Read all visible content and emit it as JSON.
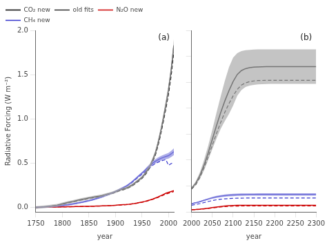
{
  "chart_data": [
    {
      "type": "line",
      "xlabel": "year",
      "ylabel": "Radiative Forcing (W m⁻²)",
      "annotations": [
        "(a)"
      ],
      "legend": "upper left",
      "grid": false,
      "x": [
        1750,
        1755,
        1760,
        1765,
        1770,
        1775,
        1780,
        1785,
        1790,
        1795,
        1800,
        1805,
        1810,
        1815,
        1820,
        1825,
        1830,
        1835,
        1840,
        1845,
        1850,
        1855,
        1860,
        1865,
        1870,
        1875,
        1880,
        1885,
        1890,
        1895,
        1900,
        1905,
        1910,
        1915,
        1920,
        1925,
        1930,
        1935,
        1940,
        1945,
        1950,
        1955,
        1960,
        1965,
        1970,
        1975,
        1980,
        1985,
        1990,
        1995,
        2000,
        2005,
        2010
      ],
      "xlim": [
        1750,
        2010
      ],
      "xticks": [
        1750,
        1800,
        1850,
        1900,
        1950,
        2000
      ],
      "ylim": [
        -0.05,
        2.0
      ],
      "yticks": [
        {
          "value": 0.0,
          "label": "0.0"
        },
        0.5,
        {
          "value": 1.0,
          "label": "1.0"
        },
        1.5,
        {
          "value": 2.0,
          "label": "2.0"
        }
      ],
      "series": [
        {
          "type": "band",
          "color": "#aaaaaa",
          "lower": [
            -0.015,
            -0.013,
            -0.012,
            -0.008,
            -0.005,
            -0.002,
            0.002,
            0.006,
            0.01,
            0.017,
            0.025,
            0.033,
            0.04,
            0.047,
            0.053,
            0.06,
            0.067,
            0.073,
            0.079,
            0.085,
            0.092,
            0.097,
            0.103,
            0.108,
            0.113,
            0.119,
            0.127,
            0.135,
            0.143,
            0.152,
            0.163,
            0.175,
            0.187,
            0.195,
            0.203,
            0.217,
            0.233,
            0.253,
            0.277,
            0.3,
            0.322,
            0.355,
            0.398,
            0.446,
            0.508,
            0.58,
            0.685,
            0.81,
            0.955,
            1.11,
            1.275,
            1.49,
            1.76
          ],
          "upper": [
            0.015,
            0.017,
            0.02,
            0.022,
            0.025,
            0.028,
            0.032,
            0.036,
            0.04,
            0.047,
            0.055,
            0.063,
            0.07,
            0.077,
            0.083,
            0.09,
            0.097,
            0.103,
            0.109,
            0.115,
            0.122,
            0.127,
            0.133,
            0.138,
            0.143,
            0.149,
            0.157,
            0.165,
            0.173,
            0.182,
            0.193,
            0.205,
            0.217,
            0.225,
            0.233,
            0.247,
            0.263,
            0.283,
            0.307,
            0.33,
            0.358,
            0.395,
            0.442,
            0.494,
            0.562,
            0.64,
            0.755,
            0.89,
            1.045,
            1.21,
            1.385,
            1.61,
            1.9
          ]
        },
        {
          "type": "band",
          "color": "#8888dd",
          "lower": [
            -0.01,
            -0.008,
            -0.007,
            -0.005,
            -0.003,
            -0.001,
            0.001,
            0.003,
            0.006,
            0.009,
            0.012,
            0.016,
            0.02,
            0.025,
            0.03,
            0.035,
            0.041,
            0.047,
            0.053,
            0.06,
            0.067,
            0.075,
            0.083,
            0.092,
            0.101,
            0.111,
            0.122,
            0.133,
            0.145,
            0.157,
            0.17,
            0.185,
            0.2,
            0.215,
            0.23,
            0.25,
            0.272,
            0.298,
            0.325,
            0.352,
            0.376,
            0.4,
            0.428,
            0.452,
            0.478,
            0.496,
            0.513,
            0.526,
            0.537,
            0.545,
            0.553,
            0.57,
            0.592
          ],
          "upper": [
            0.01,
            0.012,
            0.013,
            0.015,
            0.017,
            0.019,
            0.021,
            0.023,
            0.026,
            0.029,
            0.032,
            0.036,
            0.04,
            0.045,
            0.05,
            0.055,
            0.061,
            0.067,
            0.073,
            0.08,
            0.087,
            0.095,
            0.103,
            0.112,
            0.121,
            0.131,
            0.142,
            0.153,
            0.165,
            0.177,
            0.19,
            0.205,
            0.22,
            0.235,
            0.25,
            0.27,
            0.292,
            0.318,
            0.345,
            0.372,
            0.4,
            0.43,
            0.462,
            0.492,
            0.522,
            0.544,
            0.563,
            0.58,
            0.593,
            0.605,
            0.617,
            0.64,
            0.668
          ]
        },
        {
          "name": "CO₂ new",
          "color": "#000000",
          "line_style": "solid",
          "values": [
            0.0,
            0.002,
            0.004,
            0.007,
            0.01,
            0.013,
            0.017,
            0.021,
            0.025,
            0.032,
            0.04,
            0.048,
            0.055,
            0.062,
            0.068,
            0.075,
            0.082,
            0.088,
            0.094,
            0.1,
            0.107,
            0.112,
            0.118,
            0.123,
            0.128,
            0.134,
            0.142,
            0.15,
            0.158,
            0.167,
            0.178,
            0.19,
            0.202,
            0.21,
            0.218,
            0.232,
            0.248,
            0.268,
            0.292,
            0.315,
            0.34,
            0.375,
            0.42,
            0.47,
            0.535,
            0.61,
            0.72,
            0.85,
            1.0,
            1.16,
            1.33,
            1.55,
            1.83
          ]
        },
        {
          "name": "old fits",
          "color": "#000000",
          "line_style": "dashed",
          "values": [
            0.0,
            0.002,
            0.004,
            0.006,
            0.009,
            0.012,
            0.016,
            0.019,
            0.023,
            0.03,
            0.037,
            0.045,
            0.051,
            0.058,
            0.064,
            0.07,
            0.077,
            0.083,
            0.089,
            0.095,
            0.101,
            0.107,
            0.112,
            0.117,
            0.122,
            0.128,
            0.135,
            0.143,
            0.151,
            0.16,
            0.17,
            0.182,
            0.193,
            0.201,
            0.209,
            0.223,
            0.238,
            0.257,
            0.28,
            0.303,
            0.328,
            0.36,
            0.402,
            0.451,
            0.515,
            0.587,
            0.692,
            0.818,
            0.962,
            1.115,
            1.28,
            1.49,
            1.76
          ]
        },
        {
          "name": "N₂O new",
          "color": "#cc0000",
          "line_style": "solid",
          "values": [
            0.0,
            0.001,
            0.002,
            0.002,
            0.003,
            0.003,
            0.004,
            0.004,
            0.005,
            0.006,
            0.006,
            0.007,
            0.008,
            0.008,
            0.009,
            0.01,
            0.01,
            0.011,
            0.012,
            0.013,
            0.013,
            0.014,
            0.015,
            0.016,
            0.017,
            0.018,
            0.019,
            0.02,
            0.021,
            0.023,
            0.025,
            0.027,
            0.029,
            0.031,
            0.033,
            0.036,
            0.04,
            0.044,
            0.049,
            0.055,
            0.061,
            0.068,
            0.076,
            0.085,
            0.095,
            0.106,
            0.118,
            0.132,
            0.146,
            0.16,
            0.17,
            0.18,
            0.19
          ]
        },
        {
          "name": "old fits",
          "color": "#cc0000",
          "line_style": "dashed",
          "values": [
            0.0,
            0.001,
            0.002,
            0.002,
            0.003,
            0.003,
            0.004,
            0.004,
            0.005,
            0.005,
            0.006,
            0.007,
            0.007,
            0.008,
            0.009,
            0.009,
            0.01,
            0.011,
            0.011,
            0.012,
            0.012,
            0.013,
            0.014,
            0.015,
            0.016,
            0.017,
            0.018,
            0.019,
            0.02,
            0.022,
            0.024,
            0.026,
            0.027,
            0.029,
            0.031,
            0.034,
            0.038,
            0.042,
            0.046,
            0.052,
            0.058,
            0.064,
            0.072,
            0.081,
            0.09,
            0.101,
            0.112,
            0.125,
            0.138,
            0.151,
            0.16,
            0.17,
            0.179
          ]
        },
        {
          "name": "CH₄ new",
          "color": "#3333cc",
          "line_style": "solid",
          "values": [
            0.0,
            0.002,
            0.003,
            0.005,
            0.007,
            0.009,
            0.011,
            0.013,
            0.016,
            0.019,
            0.022,
            0.026,
            0.03,
            0.035,
            0.04,
            0.045,
            0.051,
            0.057,
            0.063,
            0.07,
            0.077,
            0.085,
            0.093,
            0.102,
            0.111,
            0.121,
            0.132,
            0.143,
            0.155,
            0.167,
            0.18,
            0.195,
            0.21,
            0.225,
            0.24,
            0.26,
            0.282,
            0.308,
            0.335,
            0.362,
            0.388,
            0.415,
            0.445,
            0.472,
            0.5,
            0.52,
            0.538,
            0.553,
            0.565,
            0.575,
            0.585,
            0.605,
            0.63
          ]
        },
        {
          "name": "old fits",
          "color": "#3333cc",
          "line_style": "dashed",
          "values": [
            0.0,
            0.002,
            0.003,
            0.004,
            0.006,
            0.008,
            0.01,
            0.012,
            0.015,
            0.018,
            0.021,
            0.025,
            0.029,
            0.034,
            0.039,
            0.044,
            0.05,
            0.056,
            0.062,
            0.069,
            0.076,
            0.083,
            0.091,
            0.1,
            0.109,
            0.119,
            0.13,
            0.141,
            0.153,
            0.165,
            0.177,
            0.192,
            0.207,
            0.221,
            0.236,
            0.255,
            0.276,
            0.3,
            0.326,
            0.351,
            0.374,
            0.398,
            0.425,
            0.45,
            0.476,
            0.495,
            0.51,
            0.523,
            0.533,
            0.54,
            0.476,
            0.495,
            0.51
          ]
        }
      ]
    },
    {
      "type": "line",
      "xlabel": "year",
      "annotations": [
        "(b)"
      ],
      "grid": false,
      "tick_labels": "x",
      "x": [
        2000,
        2010,
        2020,
        2030,
        2040,
        2050,
        2060,
        2070,
        2080,
        2090,
        2100,
        2110,
        2120,
        2130,
        2140,
        2150,
        2160,
        2170,
        2180,
        2190,
        2200,
        2220,
        2240,
        2260,
        2280,
        2300
      ],
      "xlim": [
        2000,
        2300
      ],
      "xticks": [
        2000,
        2050,
        2100,
        2150,
        2200,
        2250,
        2300
      ],
      "ylim": [
        0,
        14
      ],
      "yticks": [
        0,
        2,
        4,
        6,
        8,
        10,
        12,
        14
      ],
      "series": [
        {
          "type": "band",
          "color": "#aaaaaa",
          "lower": [
            1.75,
            2.05,
            2.55,
            3.2,
            4.0,
            4.85,
            5.65,
            6.4,
            7.0,
            7.55,
            8.2,
            8.95,
            9.4,
            9.63,
            9.74,
            9.8,
            9.83,
            9.85,
            9.86,
            9.87,
            9.87,
            9.87,
            9.87,
            9.87,
            9.87,
            9.87
          ],
          "upper": [
            1.9,
            2.35,
            3.05,
            4.0,
            5.1,
            6.35,
            7.65,
            8.9,
            10.1,
            11.15,
            11.9,
            12.25,
            12.4,
            12.47,
            12.5,
            12.52,
            12.53,
            12.53,
            12.53,
            12.53,
            12.53,
            12.53,
            12.53,
            12.53,
            12.53,
            12.53
          ]
        },
        {
          "type": "band",
          "color": "#8888dd",
          "lower": [
            0.592,
            0.658,
            0.74,
            0.832,
            0.925,
            1.012,
            1.076,
            1.128,
            1.17,
            1.198,
            1.217,
            1.231,
            1.24,
            1.245,
            1.248,
            1.25,
            1.251,
            1.251,
            1.252,
            1.252,
            1.252,
            1.252,
            1.252,
            1.252,
            1.252,
            1.252
          ],
          "upper": [
            0.668,
            0.742,
            0.84,
            0.948,
            1.055,
            1.158,
            1.234,
            1.292,
            1.34,
            1.372,
            1.393,
            1.409,
            1.42,
            1.425,
            1.428,
            1.43,
            1.431,
            1.431,
            1.432,
            1.432,
            1.432,
            1.432,
            1.432,
            1.432,
            1.432,
            1.432
          ]
        },
        {
          "color": "#000000",
          "line_style": "solid",
          "values": [
            1.83,
            2.2,
            2.8,
            3.6,
            4.55,
            5.6,
            6.65,
            7.65,
            8.55,
            9.35,
            10.05,
            10.6,
            10.9,
            11.05,
            11.12,
            11.16,
            11.18,
            11.19,
            11.2,
            11.2,
            11.2,
            11.2,
            11.2,
            11.2,
            11.2,
            11.2
          ]
        },
        {
          "color": "#000000",
          "line_style": "dashed",
          "values": [
            1.76,
            2.1,
            2.65,
            3.4,
            4.25,
            5.15,
            6.05,
            6.9,
            7.68,
            8.35,
            8.95,
            9.45,
            9.78,
            9.95,
            10.05,
            10.1,
            10.13,
            10.14,
            10.15,
            10.15,
            10.15,
            10.15,
            10.15,
            10.15,
            10.15,
            10.15
          ]
        },
        {
          "color": "#cc0000",
          "line_style": "solid",
          "values": [
            0.17,
            0.185,
            0.21,
            0.245,
            0.285,
            0.33,
            0.375,
            0.415,
            0.45,
            0.475,
            0.49,
            0.5,
            0.505,
            0.508,
            0.51,
            0.511,
            0.511,
            0.512,
            0.512,
            0.512,
            0.512,
            0.512,
            0.512,
            0.512,
            0.512,
            0.512
          ]
        },
        {
          "color": "#cc0000",
          "line_style": "dashed",
          "values": [
            0.16,
            0.173,
            0.196,
            0.228,
            0.263,
            0.302,
            0.34,
            0.374,
            0.403,
            0.424,
            0.438,
            0.447,
            0.452,
            0.455,
            0.456,
            0.457,
            0.457,
            0.458,
            0.458,
            0.458,
            0.458,
            0.458,
            0.458,
            0.458,
            0.458,
            0.458
          ]
        },
        {
          "color": "#3333cc",
          "line_style": "solid",
          "values": [
            0.63,
            0.7,
            0.79,
            0.89,
            0.99,
            1.085,
            1.155,
            1.21,
            1.255,
            1.285,
            1.305,
            1.32,
            1.33,
            1.335,
            1.338,
            1.34,
            1.341,
            1.341,
            1.342,
            1.342,
            1.342,
            1.342,
            1.342,
            1.342,
            1.342,
            1.342
          ]
        },
        {
          "color": "#3333cc",
          "line_style": "dashed",
          "values": [
            0.51,
            0.568,
            0.64,
            0.72,
            0.8,
            0.872,
            0.93,
            0.974,
            1.007,
            1.03,
            1.046,
            1.057,
            1.063,
            1.067,
            1.069,
            1.07,
            1.071,
            1.071,
            1.071,
            1.071,
            1.071,
            1.071,
            1.071,
            1.071,
            1.071,
            1.071
          ]
        }
      ]
    }
  ]
}
